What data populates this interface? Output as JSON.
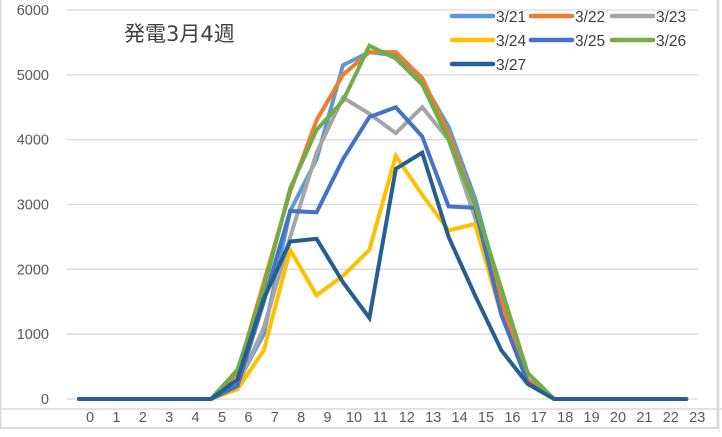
{
  "chart_data": {
    "type": "line",
    "title": "発電3月4週",
    "xlabel": "",
    "ylabel": "",
    "ylim": [
      0,
      6000
    ],
    "yticks": [
      0,
      1000,
      2000,
      3000,
      4000,
      5000,
      6000
    ],
    "grid": true,
    "legend_position": "top-right",
    "x": [
      0,
      1,
      2,
      3,
      4,
      5,
      6,
      7,
      8,
      9,
      10,
      11,
      12,
      13,
      14,
      15,
      16,
      17,
      18,
      19,
      20,
      21,
      22,
      23
    ],
    "series": [
      {
        "name": "3/21",
        "color": "#5B9BD5",
        "values": [
          0,
          0,
          0,
          0,
          0,
          0,
          250,
          1000,
          2900,
          3700,
          5150,
          5350,
          5300,
          4900,
          4200,
          3100,
          1600,
          300,
          0,
          0,
          0,
          0,
          0,
          0
        ]
      },
      {
        "name": "3/22",
        "color": "#ED7D31",
        "values": [
          0,
          0,
          0,
          0,
          0,
          0,
          400,
          1800,
          3200,
          4300,
          5000,
          5350,
          5350,
          4950,
          4100,
          3000,
          1500,
          300,
          0,
          0,
          0,
          0,
          0,
          0
        ]
      },
      {
        "name": "3/23",
        "color": "#A5A5A5",
        "values": [
          0,
          0,
          0,
          0,
          0,
          0,
          200,
          1100,
          2500,
          3800,
          4650,
          4400,
          4100,
          4500,
          4000,
          2800,
          1300,
          250,
          0,
          0,
          0,
          0,
          0,
          0
        ]
      },
      {
        "name": "3/24",
        "color": "#FFC000",
        "values": [
          0,
          0,
          0,
          0,
          0,
          0,
          150,
          750,
          2300,
          1600,
          1900,
          2300,
          3750,
          3150,
          2600,
          2700,
          1300,
          250,
          0,
          0,
          0,
          0,
          0,
          0
        ]
      },
      {
        "name": "3/25",
        "color": "#4472C4",
        "values": [
          0,
          0,
          0,
          0,
          0,
          0,
          200,
          1500,
          2900,
          2880,
          3700,
          4350,
          4500,
          4050,
          2970,
          2950,
          1300,
          250,
          0,
          0,
          0,
          0,
          0,
          0
        ]
      },
      {
        "name": "3/26",
        "color": "#70AD47",
        "values": [
          0,
          0,
          0,
          0,
          0,
          0,
          450,
          1700,
          3250,
          4150,
          4600,
          5450,
          5250,
          4850,
          4000,
          3000,
          1700,
          400,
          0,
          0,
          0,
          0,
          0,
          0
        ]
      },
      {
        "name": "3/27",
        "color": "#255E91",
        "values": [
          0,
          0,
          0,
          0,
          0,
          0,
          300,
          1550,
          2430,
          2470,
          1800,
          1250,
          3550,
          3800,
          2500,
          1600,
          750,
          230,
          0,
          0,
          0,
          0,
          0,
          0
        ]
      }
    ]
  }
}
